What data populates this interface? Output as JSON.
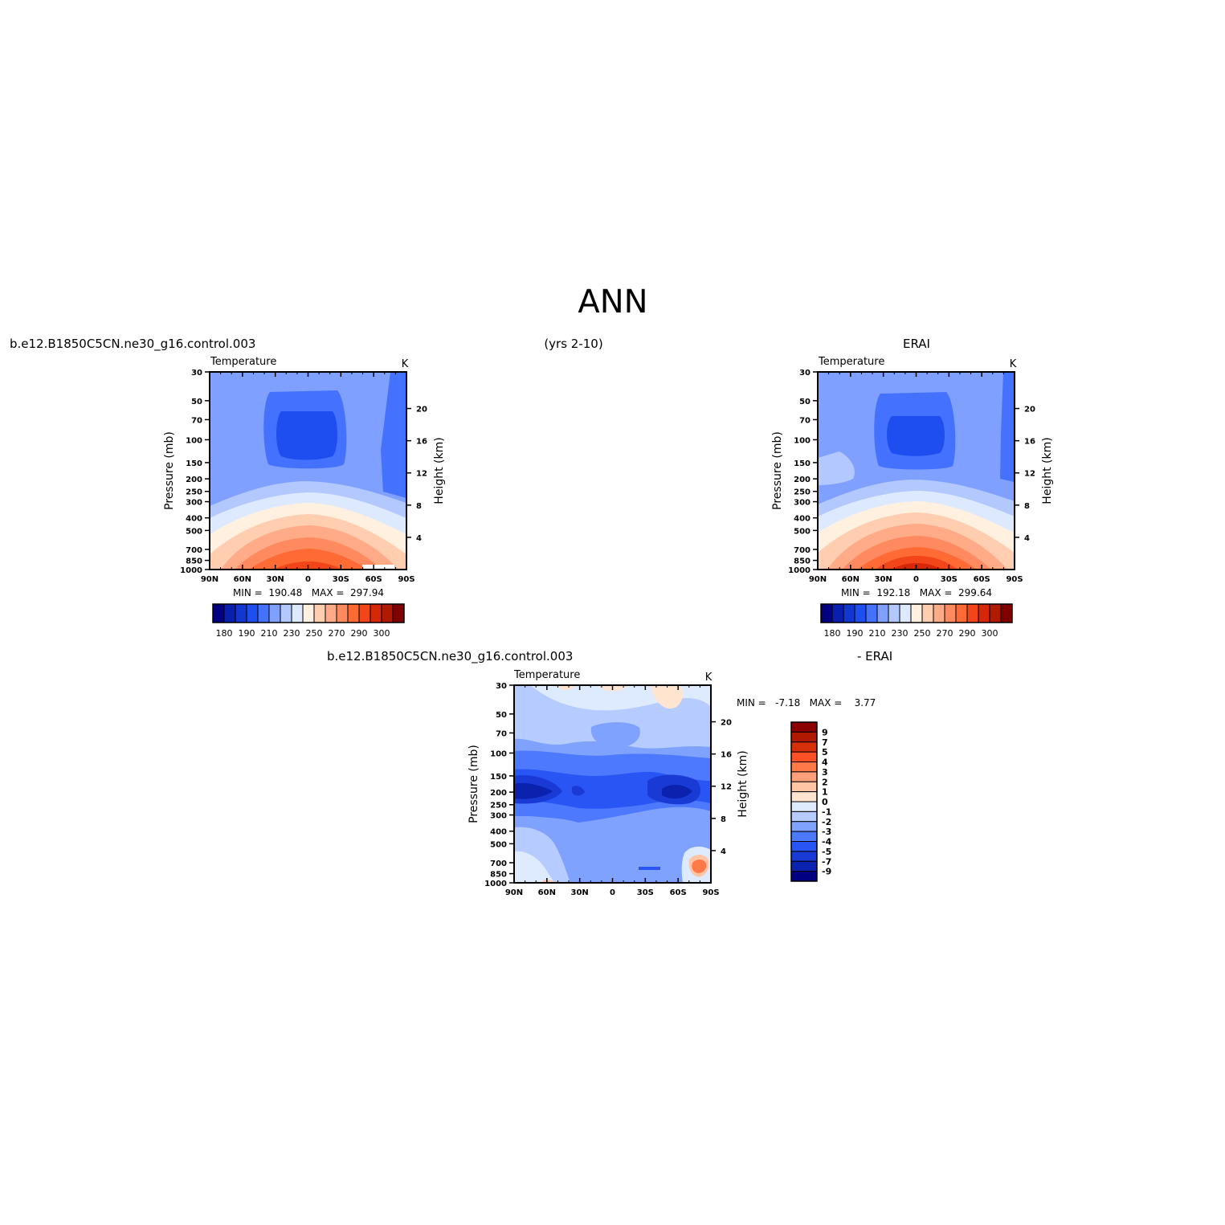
{
  "figure": {
    "title": "ANN",
    "top_left_label": "b.e12.B1850C5CN.ne30_g16.control.003",
    "top_center_label": "(yrs 2-10)",
    "top_right_label": "ERAI",
    "bottom_left_label": "b.e12.B1850C5CN.ne30_g16.control.003",
    "bottom_right_label": "- ERAI"
  },
  "chart_data": [
    {
      "type": "heatmap",
      "panel": "model",
      "title": "Temperature",
      "units": "K",
      "xlabel": "",
      "ylabel": "Pressure (mb)",
      "ylabel_right": "Height (km)",
      "x_ticks": [
        "90N",
        "60N",
        "30N",
        "0",
        "30S",
        "60S",
        "90S"
      ],
      "y_ticks": [
        "30",
        "50",
        "70",
        "100",
        "150",
        "200",
        "250",
        "300",
        "400",
        "500",
        "700",
        "850",
        "1000"
      ],
      "y_ticks_right": [
        "20",
        "16",
        "12",
        "8",
        "4"
      ],
      "stats_text": "MIN =  190.48   MAX =  297.94",
      "min": 190.48,
      "max": 297.94,
      "colorbar_labels": [
        "180",
        "190",
        "210",
        "230",
        "250",
        "270",
        "290",
        "300"
      ]
    },
    {
      "type": "heatmap",
      "panel": "obs",
      "title": "Temperature",
      "units": "K",
      "xlabel": "",
      "ylabel": "Pressure (mb)",
      "ylabel_right": "Height (km)",
      "x_ticks": [
        "90N",
        "60N",
        "30N",
        "0",
        "30S",
        "60S",
        "90S"
      ],
      "y_ticks": [
        "30",
        "50",
        "70",
        "100",
        "150",
        "200",
        "250",
        "300",
        "400",
        "500",
        "700",
        "850",
        "1000"
      ],
      "y_ticks_right": [
        "20",
        "16",
        "12",
        "8",
        "4"
      ],
      "stats_text": "MIN =  192.18   MAX =  299.64",
      "min": 192.18,
      "max": 299.64,
      "colorbar_labels": [
        "180",
        "190",
        "210",
        "230",
        "250",
        "270",
        "290",
        "300"
      ]
    },
    {
      "type": "heatmap",
      "panel": "difference",
      "title": "Temperature",
      "units": "K",
      "xlabel": "",
      "ylabel": "Pressure (mb)",
      "ylabel_right": "Height (km)",
      "x_ticks": [
        "90N",
        "60N",
        "30N",
        "0",
        "30S",
        "60S",
        "90S"
      ],
      "y_ticks": [
        "30",
        "50",
        "70",
        "100",
        "150",
        "200",
        "250",
        "300",
        "400",
        "500",
        "700",
        "850",
        "1000"
      ],
      "y_ticks_right": [
        "20",
        "16",
        "12",
        "8",
        "4"
      ],
      "stats_text": "MIN =   -7.18   MAX =    3.77",
      "min": -7.18,
      "max": 3.77,
      "colorbar_labels": [
        "9",
        "7",
        "5",
        "4",
        "3",
        "2",
        "1",
        "0",
        "-1",
        "-2",
        "-3",
        "-4",
        "-5",
        "-7",
        "-9"
      ]
    }
  ],
  "colors": {
    "blues": [
      "#000080",
      "#0a1fae",
      "#1236d0",
      "#1e4ef0",
      "#4472ff",
      "#7fa0ff",
      "#b2c8ff",
      "#dde9ff"
    ],
    "reds": [
      "#fff0e0",
      "#ffcdb0",
      "#ffab88",
      "#ff8a5f",
      "#ff6a35",
      "#f2461a",
      "#d62808",
      "#b01a00",
      "#800000"
    ],
    "diff_colors_top_to_bottom": [
      "#8b0000",
      "#b01a00",
      "#d63008",
      "#ff5126",
      "#ff7a48",
      "#ffa07a",
      "#ffc5a5",
      "#ffe5d0",
      "#deebff",
      "#b6cbff",
      "#80a2ff",
      "#4d79ff",
      "#2a55f5",
      "#1a3ad6",
      "#0a22ae",
      "#000080"
    ],
    "axis": "#000000"
  }
}
